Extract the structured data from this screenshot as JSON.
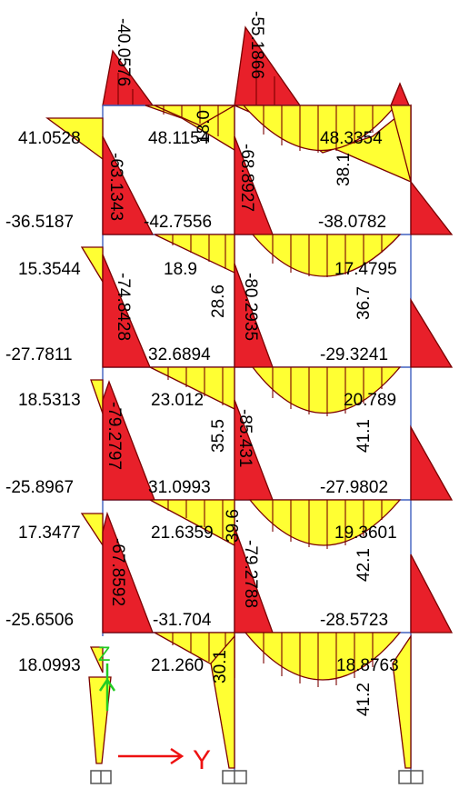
{
  "labels": {
    "col1_top": "-40.0576",
    "col2_top": "-55.1866",
    "s1_end_left": "41.0528",
    "s1_mid_left": "48.1154",
    "s1_col2_top": "18.0",
    "s1_mid_right": "48.3354",
    "s1_right_span": "38.1",
    "s1_col1_end": "-63.1343",
    "s1_col2_end": "-68.8927",
    "s1_end_left_bot": "-36.5187",
    "s1_mid_left_bot": "-42.7556",
    "s1_mid_right_bot": "-38.0782",
    "s2_end_left": "15.3544",
    "s2_mid_left": "18.9",
    "s2_col2": "28.6",
    "s2_mid_right": "17.4795",
    "s2_right_span": "36.7",
    "s2_col1": "-74.8428",
    "s2_col2_red": "-80.2935",
    "s2_end_left_bot": "-27.7811",
    "s2_mid_left_bot": "32.6894",
    "s2_mid_right_bot": "-29.3241",
    "s3_end_left": "18.5313",
    "s3_mid_left": "23.012",
    "s3_col2": "35.5",
    "s3_mid_right": "20.789",
    "s3_right_span": "41.1",
    "s3_col1": "-79.2797",
    "s3_col2_red": "-85.431",
    "s3_end_left_bot": "-25.8967",
    "s3_mid_left_bot": "31.0993",
    "s3_mid_right_bot": "-27.9802",
    "s4_end_left": "17.3477",
    "s4_mid_left": "21.6359",
    "s4_col2": "39.6",
    "s4_mid_right": "19.3601",
    "s4_right_span": "42.1",
    "s4_col1": "-67.8592",
    "s4_col2_red": "-79.2788",
    "s4_end_left_bot": "-25.6506",
    "s4_mid_left_bot": "-31.704",
    "s4_mid_right_bot": "-28.5723",
    "s5_end_left": "18.0993",
    "s5_mid_left": "21.260",
    "s5_col2": "30.1",
    "s5_mid_right": "18.8763",
    "s5_right_span": "41.2",
    "axis_z": "Z",
    "axis_y": "Y"
  },
  "colors": {
    "negative_fill": "#e8202a",
    "positive_fill": "#ffff33",
    "outline": "#7a0000",
    "frame": "#4060c0",
    "axis_z": "#22cc22",
    "axis_y": "#ee1111"
  }
}
